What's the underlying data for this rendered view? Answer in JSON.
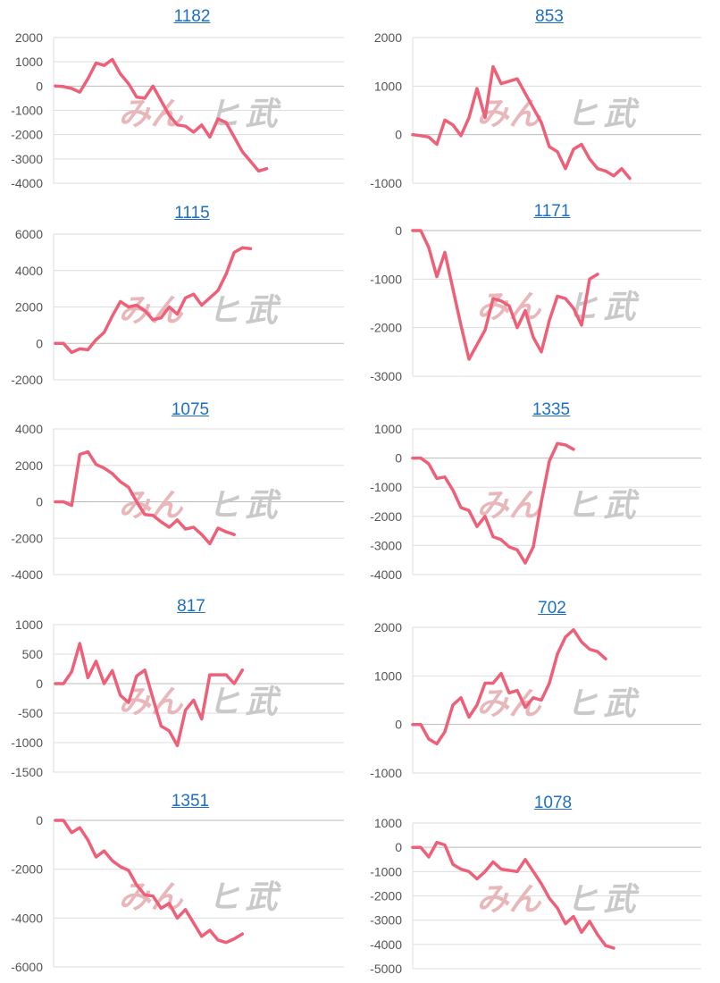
{
  "line_color": "#ee5f78",
  "grid_color": "#dddddd",
  "zero_line_color": "#bbbbbb",
  "title_color": "#1e6fbf",
  "watermark": {
    "part1": "みん",
    "part2": "ヒ",
    "part3": "武"
  },
  "chart_data": [
    {
      "type": "line",
      "title": "1182",
      "ylim": [
        -4000,
        2000
      ],
      "yticks": [
        2000,
        1000,
        0,
        -1000,
        -2000,
        -3000,
        -4000
      ],
      "tick_labels": [
        "2000",
        "1000",
        "0",
        "-1000",
        "-2000",
        "-3000",
        "-4000"
      ],
      "values": [
        0,
        -20,
        -100,
        -250,
        300,
        950,
        850,
        1100,
        500,
        100,
        -450,
        -500,
        0,
        -600,
        -1200,
        -1600,
        -1650,
        -1900,
        -1600,
        -2100,
        -1350,
        -1500,
        -2100,
        -2700,
        -3100,
        -3500,
        -3400
      ]
    },
    {
      "type": "line",
      "title": "853",
      "ylim": [
        -1000,
        2000
      ],
      "yticks": [
        2000,
        1000,
        0,
        -1000
      ],
      "tick_labels": [
        "2000",
        "1000",
        "0",
        "-1000"
      ],
      "values": [
        0,
        -20,
        -50,
        -200,
        300,
        200,
        -20,
        350,
        950,
        350,
        1400,
        1050,
        1100,
        1150,
        850,
        550,
        250,
        -250,
        -350,
        -700,
        -300,
        -200,
        -500,
        -700,
        -750,
        -850,
        -700,
        -900
      ]
    },
    {
      "type": "line",
      "title": "1115",
      "ylim": [
        -2000,
        6000
      ],
      "yticks": [
        6000,
        4000,
        2000,
        0,
        -2000
      ],
      "tick_labels": [
        "6000",
        "4000",
        "2000",
        "0",
        "-2000"
      ],
      "values": [
        0,
        0,
        -500,
        -300,
        -350,
        200,
        600,
        1500,
        2300,
        2000,
        2100,
        1800,
        1300,
        1400,
        2000,
        1600,
        2500,
        2700,
        2100,
        2500,
        2900,
        3800,
        5000,
        5250,
        5200
      ]
    },
    {
      "type": "line",
      "title": "1171",
      "ylim": [
        -3000,
        0
      ],
      "yticks": [
        0,
        -1000,
        -2000,
        -3000
      ],
      "tick_labels": [
        "0",
        "-1000",
        "-2000",
        "-3000"
      ],
      "values": [
        0,
        0,
        -350,
        -950,
        -450,
        -1200,
        -1950,
        -2650,
        -2350,
        -2050,
        -1400,
        -1450,
        -1550,
        -2000,
        -1650,
        -2200,
        -2500,
        -1850,
        -1350,
        -1400,
        -1600,
        -1950,
        -1000,
        -900
      ]
    },
    {
      "type": "line",
      "title": "1075",
      "ylim": [
        -4000,
        4000
      ],
      "yticks": [
        4000,
        2000,
        0,
        -2000,
        -4000
      ],
      "tick_labels": [
        "4000",
        "2000",
        "0",
        "-2000",
        "-4000"
      ],
      "values": [
        0,
        0,
        -200,
        2600,
        2750,
        2050,
        1850,
        1550,
        1100,
        800,
        0,
        -700,
        -750,
        -1100,
        -1400,
        -1000,
        -1500,
        -1400,
        -1800,
        -2300,
        -1450,
        -1650,
        -1800
      ]
    },
    {
      "type": "line",
      "title": "1335",
      "ylim": [
        -4000,
        1000
      ],
      "yticks": [
        1000,
        0,
        -1000,
        -2000,
        -3000,
        -4000
      ],
      "tick_labels": [
        "1000",
        "0",
        "-1000",
        "-2000",
        "-3000",
        "-4000"
      ],
      "values": [
        0,
        0,
        -200,
        -700,
        -650,
        -1100,
        -1700,
        -1800,
        -2350,
        -2000,
        -2700,
        -2800,
        -3050,
        -3150,
        -3600,
        -3050,
        -1500,
        -100,
        500,
        450,
        300
      ]
    },
    {
      "type": "line",
      "title": "817",
      "ylim": [
        -1500,
        1000
      ],
      "yticks": [
        1000,
        500,
        0,
        -500,
        -1000,
        -1500
      ],
      "tick_labels": [
        "1000",
        "500",
        "0",
        "-500",
        "-1000",
        "-1500"
      ],
      "values": [
        0,
        0,
        200,
        680,
        100,
        380,
        0,
        220,
        -200,
        -320,
        130,
        230,
        -250,
        -720,
        -800,
        -1050,
        -450,
        -280,
        -600,
        150,
        150,
        150,
        0,
        230
      ]
    },
    {
      "type": "line",
      "title": "702",
      "ylim": [
        -1000,
        2000
      ],
      "yticks": [
        2000,
        1000,
        0,
        -1000
      ],
      "tick_labels": [
        "2000",
        "1000",
        "0",
        "-1000"
      ],
      "values": [
        0,
        0,
        -300,
        -400,
        -150,
        400,
        550,
        150,
        400,
        850,
        850,
        1050,
        650,
        700,
        350,
        550,
        500,
        850,
        1450,
        1800,
        1950,
        1700,
        1550,
        1500,
        1350
      ]
    },
    {
      "type": "line",
      "title": "1351",
      "ylim": [
        -6000,
        0
      ],
      "yticks": [
        0,
        -2000,
        -4000,
        -6000
      ],
      "tick_labels": [
        "0",
        "-2000",
        "-4000",
        "-6000"
      ],
      "values": [
        0,
        0,
        -500,
        -300,
        -800,
        -1500,
        -1250,
        -1650,
        -1900,
        -2050,
        -2650,
        -3050,
        -3100,
        -3600,
        -3400,
        -4000,
        -3650,
        -4200,
        -4750,
        -4500,
        -4900,
        -5000,
        -4850,
        -4650
      ]
    },
    {
      "type": "line",
      "title": "1078",
      "ylim": [
        -5000,
        1000
      ],
      "yticks": [
        1000,
        0,
        -1000,
        -2000,
        -3000,
        -4000,
        -5000
      ],
      "tick_labels": [
        "1000",
        "0",
        "-1000",
        "-2000",
        "-3000",
        "-4000",
        "-5000"
      ],
      "values": [
        0,
        0,
        -400,
        200,
        100,
        -700,
        -900,
        -1000,
        -1300,
        -1000,
        -600,
        -900,
        -950,
        -1000,
        -500,
        -1000,
        -1500,
        -2100,
        -2500,
        -3150,
        -2850,
        -3500,
        -3050,
        -3600,
        -4050,
        -4150
      ]
    }
  ]
}
